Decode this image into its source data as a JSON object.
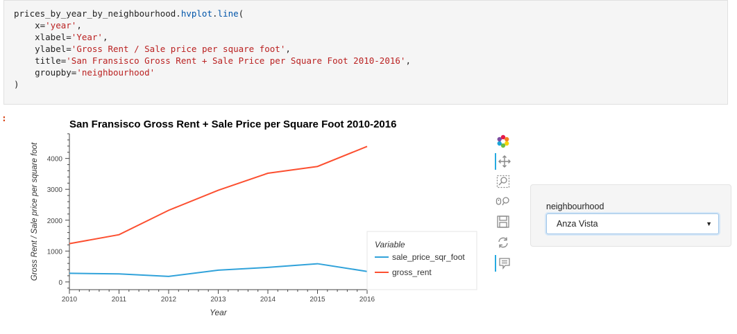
{
  "code_lines": [
    "prices_by_year_by_neighbourhood.hvplot.line(",
    "    x='year',",
    "    xlabel='Year',",
    "    ylabel='Gross Rent / Sale price per square foot',",
    "    title='San Fransisco Gross Rent + Sale Price per Square Foot 2010-2016',",
    "    groupby='neighbourhood'",
    ")"
  ],
  "chart_data": {
    "type": "line",
    "title": "San Fransisco Gross Rent + Sale Price per Square Foot 2010-2016",
    "xlabel": "Year",
    "ylabel": "Gross Rent / Sale price per square foot",
    "x": [
      2010,
      2011,
      2012,
      2013,
      2014,
      2015,
      2016
    ],
    "xticks": [
      "2010",
      "2011",
      "2012",
      "2013",
      "2014",
      "2015",
      "2016"
    ],
    "yticks": [
      "0",
      "1000",
      "2000",
      "3000",
      "4000"
    ],
    "xlim": [
      2010,
      2016
    ],
    "ylim": [
      -250,
      4800
    ],
    "legend_title": "Variable",
    "legend_position": "bottom-right",
    "series": [
      {
        "name": "sale_price_sqr_foot",
        "color": "#30a2da",
        "values": [
          280,
          260,
          180,
          380,
          470,
          590,
          340
        ]
      },
      {
        "name": "gross_rent",
        "color": "#fc4f30",
        "values": [
          1240,
          1530,
          2320,
          2970,
          3520,
          3740,
          4390
        ]
      }
    ]
  },
  "toolbar": {
    "tools": [
      "bokeh-logo-icon",
      "pan-icon",
      "box-zoom-icon",
      "wheel-zoom-icon",
      "save-icon",
      "reset-icon",
      "hover-icon"
    ]
  },
  "widget": {
    "label": "neighbourhood",
    "selected": "Anza Vista"
  }
}
